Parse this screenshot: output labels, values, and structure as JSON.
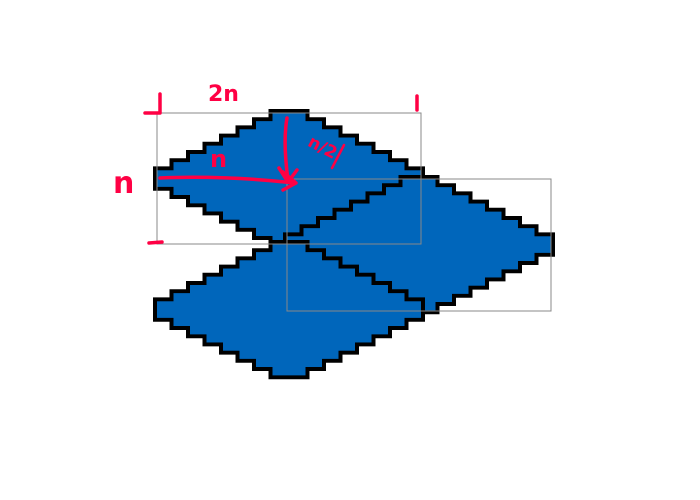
{
  "colors": {
    "background": "#ffffff",
    "tile_fill": "#0066bb",
    "tile_outline": "#000000",
    "bounding_box": "#888888",
    "annotation": "#ff0044"
  },
  "shapes": {
    "tile_count": 3,
    "bounding_box_count": 2
  },
  "annotations": {
    "width_label": "2n",
    "height_label": "n",
    "diagonal_label": "n",
    "half_label": "n/2",
    "top_left_mark": "L",
    "top_right_mark": "1",
    "bottom_left_mark": "—"
  }
}
